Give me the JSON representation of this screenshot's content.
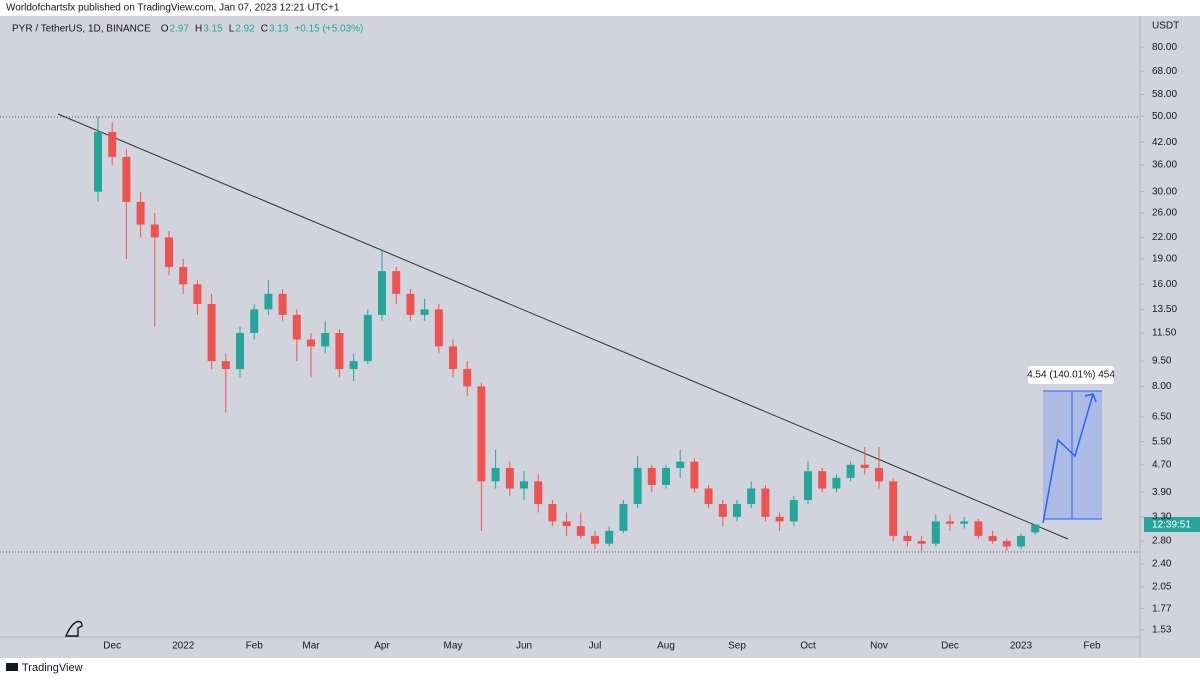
{
  "header": {
    "publisher": "Worldofchartsfx published on TradingView.com, Jan 07, 2023 12:21 UTC+1",
    "brand": "TradingView"
  },
  "symbol": {
    "name": "PYR / TetherUS, 1D, BINANCE",
    "ohlc": [
      {
        "key": "O",
        "value": "2.97"
      },
      {
        "key": "H",
        "value": "3.15"
      },
      {
        "key": "L",
        "value": "2.92"
      },
      {
        "key": "C",
        "value": "3.13"
      }
    ],
    "change": "+0.15 (+5.03%)"
  },
  "chart_data": {
    "type": "candlestick",
    "currency": "USDT",
    "log_scale": true,
    "grid": false,
    "up_color": "#26a69a",
    "down_color": "#ef5350",
    "countdown": "12:39:51",
    "measure_label": "4.54 (140.01%) 454",
    "ylim": [
      1.46,
      103
    ],
    "yticks": [
      {
        "value": 1.53,
        "label": "1.53"
      },
      {
        "value": 1.77,
        "label": "1.77"
      },
      {
        "value": 2.05,
        "label": "2.05"
      },
      {
        "value": 2.4,
        "label": "2.40"
      },
      {
        "value": 2.8,
        "label": "2.80"
      },
      {
        "value": 3.3,
        "label": "3.30"
      },
      {
        "value": 3.9,
        "label": "3.90"
      },
      {
        "value": 4.7,
        "label": "4.70"
      },
      {
        "value": 5.5,
        "label": "5.50"
      },
      {
        "value": 6.5,
        "label": "6.50"
      },
      {
        "value": 8,
        "label": "8.00"
      },
      {
        "value": 9.5,
        "label": "9.50"
      },
      {
        "value": 11.5,
        "label": "11.50"
      },
      {
        "value": 13.5,
        "label": "13.50"
      },
      {
        "value": 16,
        "label": "16.00"
      },
      {
        "value": 19,
        "label": "19.00"
      },
      {
        "value": 22,
        "label": "22.00"
      },
      {
        "value": 26,
        "label": "26.00"
      },
      {
        "value": 30,
        "label": "30.00"
      },
      {
        "value": 36,
        "label": "36.00"
      },
      {
        "value": 42,
        "label": "42.00"
      },
      {
        "value": 50,
        "label": "50.00"
      },
      {
        "value": 58,
        "label": "58.00"
      },
      {
        "value": 68,
        "label": "68.00"
      },
      {
        "value": 80,
        "label": "80.00"
      }
    ],
    "categories": [
      null,
      "Dec",
      null,
      null,
      null,
      null,
      "2022",
      null,
      null,
      null,
      null,
      "Feb",
      null,
      null,
      null,
      "Mar",
      null,
      null,
      null,
      null,
      "Apr",
      null,
      null,
      null,
      null,
      "May",
      null,
      null,
      null,
      null,
      "Jun",
      null,
      null,
      null,
      null,
      "Jul",
      null,
      null,
      null,
      null,
      "Aug",
      null,
      null,
      null,
      null,
      "Sep",
      null,
      null,
      null,
      null,
      "Oct",
      null,
      null,
      null,
      null,
      "Nov",
      null,
      null,
      null,
      null,
      "Dec",
      null,
      null,
      null,
      null,
      "2023",
      null,
      null,
      null,
      null,
      "Feb",
      null,
      null
    ],
    "open": [
      30,
      45,
      38,
      28,
      24,
      22,
      18,
      16,
      14,
      9.5,
      9,
      11.5,
      13.5,
      15,
      13,
      11,
      10.5,
      11.5,
      9,
      9.5,
      13,
      17.5,
      15,
      13,
      13.5,
      10.5,
      9,
      8,
      4.2,
      4.6,
      4,
      4.2,
      3.6,
      3.2,
      3.1,
      2.9,
      2.75,
      3.0,
      3.6,
      4.6,
      4.1,
      4.6,
      4.8,
      4.0,
      3.6,
      3.3,
      3.6,
      4.0,
      3.3,
      3.2,
      3.7,
      4.5,
      4.0,
      4.3,
      4.7,
      4.6,
      4.2,
      2.9,
      2.8,
      2.75,
      3.2,
      3.15,
      3.2,
      2.9,
      2.8,
      2.7,
      2.97,
      null,
      null,
      null,
      null,
      null,
      null
    ],
    "high": [
      50,
      48,
      40,
      30,
      26,
      23,
      19,
      16.5,
      15,
      10,
      12,
      14,
      16.5,
      15.5,
      13.5,
      11.5,
      12.5,
      11.8,
      10,
      13.5,
      20,
      18,
      15.5,
      14.5,
      14,
      11,
      9.5,
      8.2,
      5.2,
      4.8,
      4.5,
      4.4,
      3.7,
      3.4,
      3.4,
      3.0,
      3.1,
      3.7,
      5.0,
      4.7,
      4.7,
      5.2,
      4.9,
      4.1,
      3.7,
      3.7,
      4.2,
      4.1,
      3.4,
      3.8,
      4.8,
      4.6,
      4.4,
      4.8,
      5.3,
      5.3,
      4.3,
      3.0,
      2.9,
      3.35,
      3.35,
      3.3,
      3.25,
      3.0,
      2.85,
      2.95,
      3.15,
      null,
      null,
      null,
      null,
      null,
      null
    ],
    "low": [
      28,
      36,
      19,
      22,
      12,
      17,
      15,
      13,
      9,
      6.7,
      8.5,
      11,
      13,
      12.5,
      9.5,
      8.5,
      10,
      8.5,
      8.3,
      9.3,
      12.5,
      14,
      12.5,
      12.5,
      10,
      8.5,
      7.5,
      3.0,
      4,
      3.8,
      3.7,
      3.4,
      3.1,
      2.9,
      2.85,
      2.65,
      2.7,
      2.95,
      3.5,
      3.9,
      4.0,
      4.3,
      3.9,
      3.5,
      3.1,
      3.2,
      3.5,
      3.2,
      3.0,
      3.1,
      3.6,
      3.9,
      3.9,
      4.2,
      4.4,
      4.0,
      2.8,
      2.7,
      2.62,
      2.7,
      3.0,
      3.05,
      2.85,
      2.75,
      2.62,
      2.65,
      2.92,
      null,
      null,
      null,
      null,
      null,
      null
    ],
    "close": [
      45,
      38,
      28,
      24,
      22,
      18,
      16,
      14,
      9.5,
      9,
      11.5,
      13.5,
      15,
      13,
      11,
      10.5,
      11.5,
      9,
      9.5,
      13,
      17.5,
      15,
      13,
      13.5,
      10.5,
      9,
      8,
      4.2,
      4.6,
      4,
      4.2,
      3.6,
      3.2,
      3.1,
      2.9,
      2.75,
      3.0,
      3.6,
      4.6,
      4.1,
      4.6,
      4.8,
      4.0,
      3.6,
      3.3,
      3.6,
      4.0,
      3.3,
      3.2,
      3.7,
      4.5,
      4.0,
      4.3,
      4.7,
      4.6,
      4.2,
      2.9,
      2.8,
      2.75,
      3.2,
      3.15,
      3.2,
      2.9,
      2.8,
      2.7,
      2.9,
      3.13,
      null,
      null,
      null,
      null,
      null,
      null
    ]
  }
}
